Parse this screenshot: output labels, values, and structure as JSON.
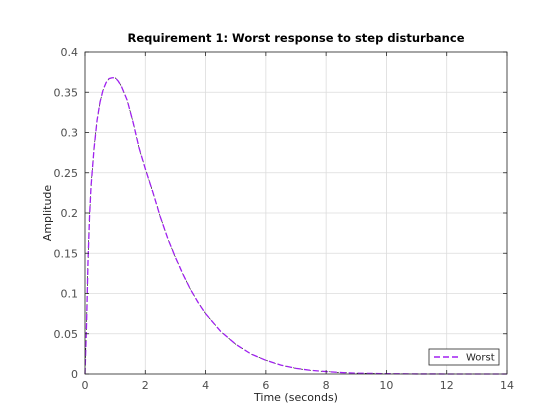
{
  "chart_data": {
    "type": "line",
    "title": "Requirement 1: Worst response to step disturbance",
    "xlabel": "Time (seconds)",
    "ylabel": "Amplitude",
    "xlim": [
      0,
      14
    ],
    "ylim": [
      0,
      0.4
    ],
    "xticks": [
      0,
      2,
      4,
      6,
      8,
      10,
      12,
      14
    ],
    "xtick_labels": [
      "0",
      "2",
      "4",
      "6",
      "8",
      "10",
      "12",
      "14"
    ],
    "yticks": [
      0,
      0.05,
      0.1,
      0.15,
      0.2,
      0.25,
      0.3,
      0.35,
      0.4
    ],
    "ytick_labels": [
      "0",
      "0.05",
      "0.1",
      "0.15",
      "0.2",
      "0.25",
      "0.3",
      "0.35",
      "0.4"
    ],
    "grid": true,
    "legend_position": "bottom-right",
    "series": [
      {
        "name": "Worst",
        "color": "#a020f0",
        "overlay_color": "#000000",
        "style": "dashed",
        "x": [
          0,
          0.05,
          0.1,
          0.15,
          0.2,
          0.3,
          0.4,
          0.5,
          0.6,
          0.7,
          0.8,
          0.9,
          1.0,
          1.1,
          1.2,
          1.4,
          1.6,
          1.8,
          2.0,
          2.25,
          2.5,
          2.75,
          3.0,
          3.25,
          3.5,
          3.75,
          4.0,
          4.5,
          5.0,
          5.5,
          6.0,
          6.5,
          7.0,
          7.5,
          8.0,
          8.5,
          9.0,
          10.0,
          11.0,
          12.0,
          13.0,
          14.0
        ],
        "y": [
          0,
          0.06,
          0.14,
          0.195,
          0.233,
          0.28,
          0.315,
          0.338,
          0.353,
          0.362,
          0.367,
          0.368,
          0.368,
          0.364,
          0.358,
          0.34,
          0.312,
          0.28,
          0.255,
          0.226,
          0.195,
          0.168,
          0.145,
          0.124,
          0.105,
          0.089,
          0.075,
          0.053,
          0.037,
          0.025,
          0.017,
          0.011,
          0.007,
          0.0045,
          0.003,
          0.0018,
          0.001,
          0.0004,
          0.0001,
          4e-05,
          1e-05,
          0
        ]
      }
    ]
  }
}
